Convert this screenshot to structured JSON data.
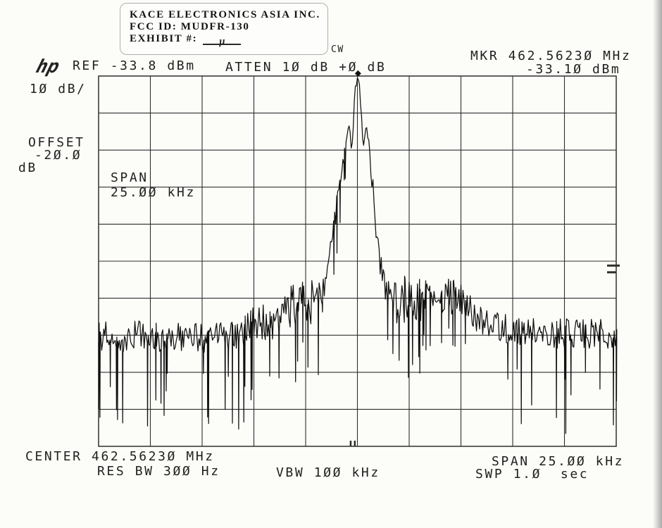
{
  "stamp": {
    "company": "KACE ELECTRONICS ASIA INC.",
    "fcc_id": "FCC ID:  MUDFR-130",
    "exhibit_label": "EXHIBIT #:",
    "exhibit_mark": "μ"
  },
  "header": {
    "logo": "hp",
    "ref_level": "REF -33.8 dBm",
    "attenuation": "ATTEN 1Ø dB +Ø dB",
    "signal_mode": "CW",
    "marker_freq": "MKR 462.5623Ø MHz",
    "marker_ampl": "-33.1Ø dBm"
  },
  "left_labels": {
    "scale": "1Ø dB/",
    "offset_line1": "OFFSET",
    "offset_line2": "-2Ø.Ø",
    "offset_line3": "dB"
  },
  "inplot": {
    "span_line1": "SPAN",
    "span_line2": "25.ØØ kHz"
  },
  "footer": {
    "center_freq": "CENTER 462.5623Ø MHz",
    "res_bw": "RES BW 3ØØ Hz",
    "video_bw": "VBW 1ØØ kHz",
    "span": "SPAN 25.ØØ kHz",
    "sweep": "SWP 1.Ø  sec"
  },
  "colors": {
    "paper": "#fcfcf9",
    "ink": "#1f1f1f",
    "grid": "#2e2e2e",
    "trace": "#101010"
  },
  "chart_data": {
    "type": "line",
    "title": "Spectrum analyzer sweep - CW carrier at 462.56230 MHz",
    "x_axis": {
      "center_mhz": 462.5623,
      "span_khz": 25.0,
      "divisions": 10,
      "label_left": "CENTER 462.5623Ø MHz",
      "label_right": "SPAN 25.ØØ kHz"
    },
    "y_axis": {
      "ref_dbm": -33.8,
      "db_per_div": 10,
      "divisions": 10,
      "offset_db": -20.0,
      "label": "1Ø dB/"
    },
    "marker": {
      "offset_khz": 0.03,
      "freq_mhz": 462.5623,
      "amplitude_dbm": -33.1
    },
    "envelope_dbm_vs_offset_khz": [
      [
        -12.5,
        -104.0
      ],
      [
        -11.5,
        -104.5
      ],
      [
        -10.5,
        -103.5
      ],
      [
        -9.5,
        -104.5
      ],
      [
        -8.5,
        -104.0
      ],
      [
        -7.5,
        -104.5
      ],
      [
        -6.5,
        -103.5
      ],
      [
        -5.8,
        -104.0
      ],
      [
        -5.2,
        -102.0
      ],
      [
        -4.7,
        -99.5
      ],
      [
        -4.2,
        -101.0
      ],
      [
        -3.7,
        -97.5
      ],
      [
        -3.2,
        -95.5
      ],
      [
        -2.7,
        -94.5
      ],
      [
        -2.3,
        -95.5
      ],
      [
        -1.9,
        -93.5
      ],
      [
        -1.6,
        -90.0
      ],
      [
        -1.4,
        -86.0
      ],
      [
        -1.2,
        -78.0
      ],
      [
        -1.0,
        -68.0
      ],
      [
        -0.85,
        -61.0
      ],
      [
        -0.7,
        -57.0
      ],
      [
        -0.6,
        -55.0
      ],
      [
        -0.5,
        -49.0
      ],
      [
        -0.41,
        -45.2
      ],
      [
        -0.33,
        -51.0
      ],
      [
        -0.26,
        -54.5
      ],
      [
        -0.18,
        -44.0
      ],
      [
        -0.1,
        -37.5
      ],
      [
        -0.03,
        -34.2
      ],
      [
        0.03,
        -33.6
      ],
      [
        0.1,
        -35.5
      ],
      [
        0.17,
        -42.0
      ],
      [
        0.24,
        -50.5
      ],
      [
        0.32,
        -51.5
      ],
      [
        0.42,
        -45.8
      ],
      [
        0.52,
        -50.0
      ],
      [
        0.62,
        -57.0
      ],
      [
        0.75,
        -65.0
      ],
      [
        0.9,
        -74.0
      ],
      [
        1.05,
        -82.0
      ],
      [
        1.25,
        -89.0
      ],
      [
        1.5,
        -93.5
      ],
      [
        1.8,
        -95.0
      ],
      [
        2.1,
        -94.0
      ],
      [
        2.5,
        -93.5
      ],
      [
        2.9,
        -95.0
      ],
      [
        3.3,
        -93.5
      ],
      [
        3.8,
        -94.5
      ],
      [
        4.3,
        -93.0
      ],
      [
        4.7,
        -93.5
      ],
      [
        5.2,
        -96.0
      ],
      [
        5.8,
        -99.0
      ],
      [
        6.5,
        -101.0
      ],
      [
        7.5,
        -102.5
      ],
      [
        8.5,
        -103.0
      ],
      [
        9.5,
        -103.5
      ],
      [
        10.5,
        -103.0
      ],
      [
        11.5,
        -103.5
      ],
      [
        12.5,
        -103.5
      ]
    ],
    "noise": {
      "seed": 12,
      "step_khz": 0.05,
      "regions": [
        {
          "max_abs_offset": 0.6,
          "jitter_db": 1.5,
          "spike_prob": 0.05,
          "spike_depth_db": [
            3,
            10
          ]
        },
        {
          "max_abs_offset": 1.5,
          "jitter_db": 3.5,
          "spike_prob": 0.16,
          "spike_depth_db": [
            5,
            16
          ]
        },
        {
          "max_abs_offset": 3.3,
          "jitter_db": 6.0,
          "spike_prob": 0.22,
          "spike_depth_db": [
            6,
            22
          ]
        },
        {
          "max_abs_offset": 5.5,
          "jitter_db": 5.0,
          "spike_prob": 0.14,
          "spike_depth_db": [
            8,
            26
          ]
        },
        {
          "max_abs_offset": 12.5,
          "jitter_db": 4.0,
          "spike_prob": 0.12,
          "spike_depth_db": [
            8,
            28
          ]
        }
      ]
    },
    "right_edge_dashes_y_div": [
      5.12,
      5.3
    ],
    "bottom_ticks_x_div": [
      4.87,
      4.95
    ]
  }
}
